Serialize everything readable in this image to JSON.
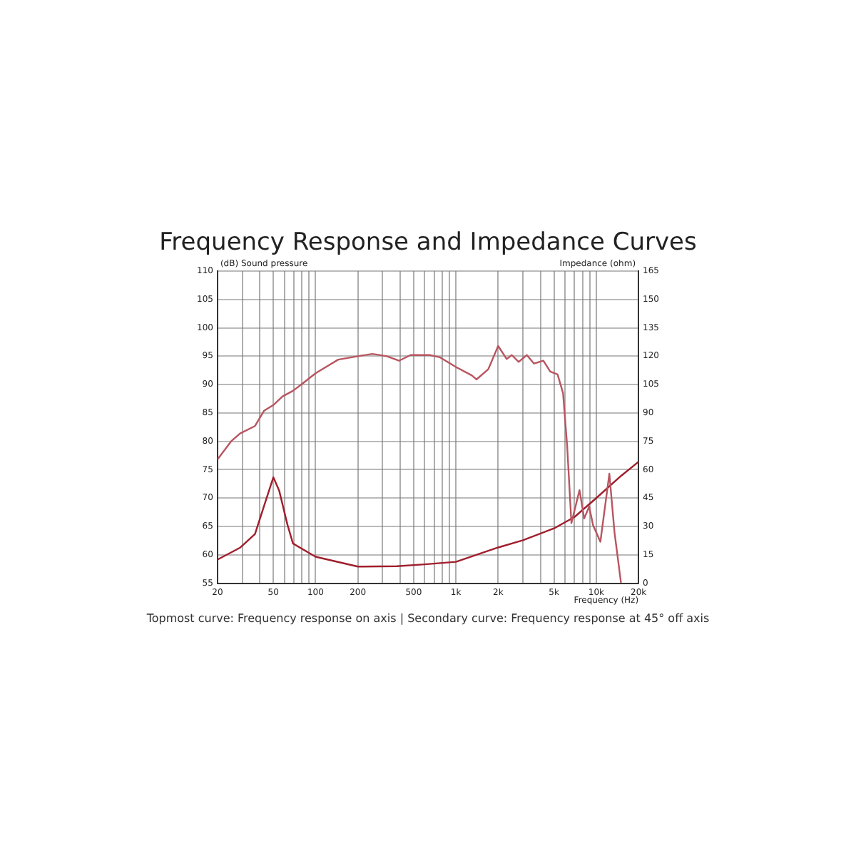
{
  "chart_data": {
    "type": "line",
    "title": "Frequency Response and Impedance Curves",
    "xlabel": "Frequency (Hz)",
    "ylabel": "(dB) Sound pressure",
    "y2label": "Impedance (ohm)",
    "annotations": [
      "Topmost curve: Frequency response on axis | Secondary curve: Frequency response at 45° off axis"
    ],
    "log": "x",
    "grid": true,
    "legend": false,
    "marker": "none",
    "line_style": "solid",
    "xlim": [
      20,
      20000
    ],
    "xticks": [
      20,
      {
        "value": 30,
        "label": null
      },
      {
        "value": 40,
        "label": null
      },
      50,
      {
        "value": 60,
        "label": null
      },
      {
        "value": 70,
        "label": null
      },
      {
        "value": 80,
        "label": null
      },
      {
        "value": 90,
        "label": null
      },
      100,
      200,
      {
        "value": 300,
        "label": null
      },
      {
        "value": 400,
        "label": null
      },
      500,
      {
        "value": 600,
        "label": null
      },
      {
        "value": 700,
        "label": null
      },
      {
        "value": 800,
        "label": null
      },
      {
        "value": 900,
        "label": null
      },
      {
        "value": 1000,
        "label": "1k"
      },
      {
        "value": 2000,
        "label": "2k"
      },
      {
        "value": 3000,
        "label": null
      },
      {
        "value": 4000,
        "label": null
      },
      {
        "value": 5000,
        "label": "5k"
      },
      {
        "value": 6000,
        "label": null
      },
      {
        "value": 7000,
        "label": null
      },
      {
        "value": 8000,
        "label": null
      },
      {
        "value": 9000,
        "label": null
      },
      {
        "value": 10000,
        "label": "10k"
      },
      {
        "value": 20000,
        "label": "20k"
      }
    ],
    "ylim": [
      55,
      110
    ],
    "yticks": [
      55,
      60,
      65,
      70,
      75,
      80,
      85,
      90,
      95,
      100,
      105,
      110
    ],
    "y2lim": [
      0,
      165
    ],
    "y2ticks": [
      0,
      15,
      30,
      45,
      60,
      75,
      90,
      105,
      120,
      135,
      150,
      165
    ],
    "series": [
      {
        "color": "#b85560",
        "x": [
          20,
          25,
          29,
          37,
          43,
          50,
          58,
          69,
          81,
          100,
          145,
          200,
          254,
          322,
          393,
          475,
          650,
          770,
          1000,
          1300,
          1400,
          1700,
          2000,
          2300,
          2500,
          2800,
          3200,
          3600,
          4200,
          4700,
          5300,
          5800,
          6200,
          6650,
          7600,
          8200,
          8900,
          9500,
          10700,
          12400,
          13500,
          15000
        ],
        "values": [
          76.8,
          80,
          81.4,
          82.7,
          85.4,
          86.4,
          87.9,
          88.9,
          90.2,
          92,
          94.4,
          95,
          95.4,
          95,
          94.2,
          95.2,
          95.2,
          94.8,
          93.1,
          91.6,
          90.9,
          92.7,
          96.8,
          94.5,
          95.2,
          94,
          95.2,
          93.7,
          94.2,
          92.3,
          91.8,
          88.5,
          79.3,
          65.6,
          71.4,
          66.4,
          68.5,
          65.2,
          62.3,
          74.3,
          63.9,
          55.1
        ]
      },
      {
        "color": "#a01e2c",
        "axis": "y2",
        "x": [
          20,
          29,
          37,
          43,
          50,
          55,
          63,
          69,
          100,
          200,
          380,
          600,
          1000,
          2000,
          3000,
          5000,
          7000,
          10000,
          15000,
          20000
        ],
        "values": [
          12.5,
          18.8,
          26,
          41,
          56,
          49,
          31,
          21,
          14,
          8.8,
          9,
          10,
          11.3,
          18.9,
          22.7,
          29,
          35,
          45,
          56.7,
          64.2
        ]
      }
    ]
  }
}
